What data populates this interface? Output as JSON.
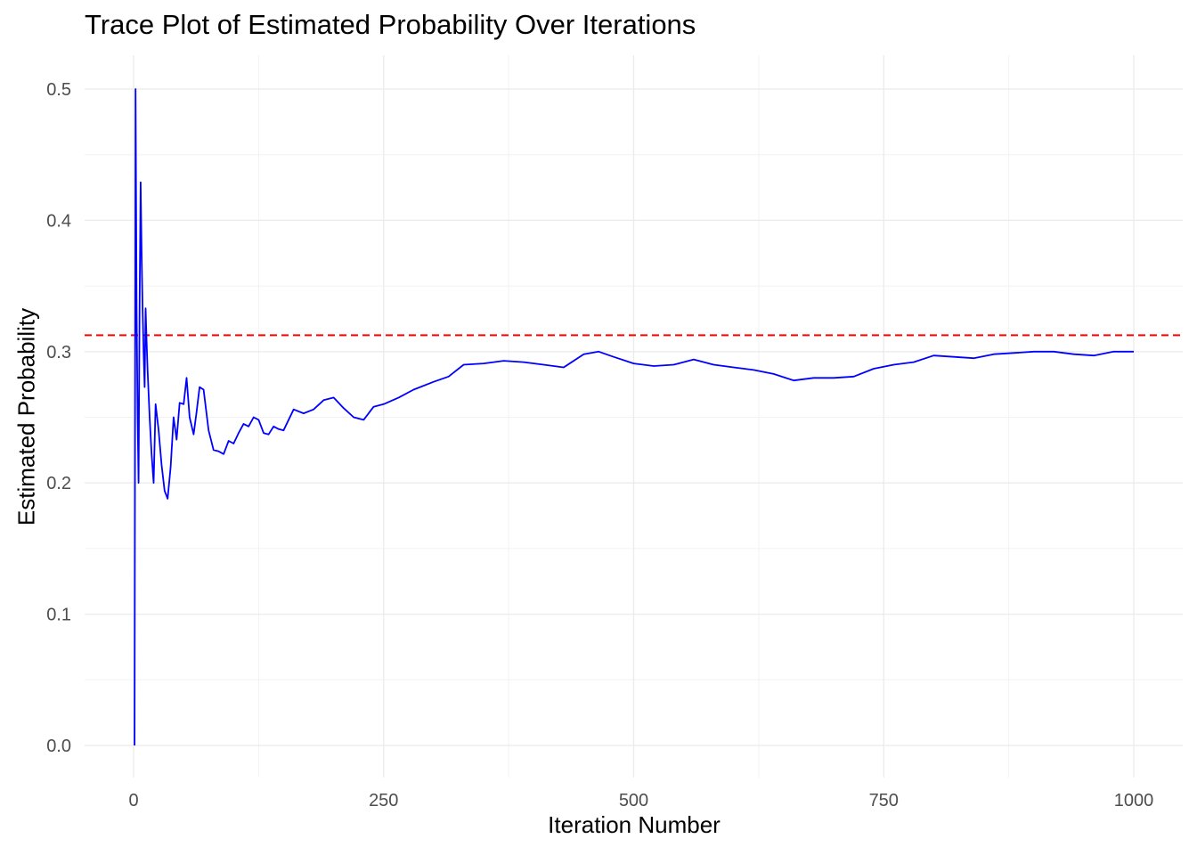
{
  "chart_data": {
    "type": "line",
    "title": "Trace Plot of Estimated Probability Over Iterations",
    "xlabel": "Iteration Number",
    "ylabel": "Estimated Probability",
    "xlim": [
      1,
      1000
    ],
    "ylim": [
      0,
      0.5
    ],
    "x_ticks": [
      0,
      250,
      500,
      750,
      1000
    ],
    "x_tick_labels": [
      "0",
      "250",
      "500",
      "750",
      "1000"
    ],
    "y_ticks": [
      0.0,
      0.1,
      0.2,
      0.3,
      0.4,
      0.5
    ],
    "y_tick_labels": [
      "0.0",
      "0.1",
      "0.2",
      "0.3",
      "0.4",
      "0.5"
    ],
    "grid": true,
    "reference_line": {
      "y": 0.3125,
      "style": "dashed",
      "color": "#ff0000"
    },
    "series": [
      {
        "color": "#0000ff",
        "x": [
          1,
          2,
          3,
          4,
          5,
          6,
          7,
          8,
          9,
          10,
          11,
          12,
          13,
          14,
          16,
          18,
          20,
          22,
          25,
          28,
          31,
          34,
          37,
          40,
          43,
          46,
          50,
          53,
          56,
          60,
          63,
          66,
          70,
          75,
          80,
          85,
          90,
          95,
          100,
          105,
          110,
          115,
          120,
          125,
          130,
          135,
          140,
          145,
          150,
          160,
          170,
          180,
          190,
          200,
          210,
          220,
          230,
          240,
          250,
          265,
          280,
          300,
          315,
          330,
          350,
          370,
          390,
          410,
          430,
          450,
          465,
          480,
          500,
          520,
          540,
          560,
          580,
          600,
          620,
          640,
          660,
          680,
          700,
          720,
          740,
          760,
          780,
          800,
          820,
          840,
          860,
          880,
          900,
          920,
          940,
          960,
          980,
          1000
        ],
        "y": [
          0.0,
          0.5,
          0.333,
          0.25,
          0.2,
          0.333,
          0.429,
          0.375,
          0.333,
          0.3,
          0.273,
          0.333,
          0.308,
          0.286,
          0.25,
          0.222,
          0.2,
          0.26,
          0.24,
          0.214,
          0.194,
          0.188,
          0.212,
          0.25,
          0.233,
          0.261,
          0.26,
          0.28,
          0.25,
          0.237,
          0.254,
          0.273,
          0.271,
          0.24,
          0.225,
          0.224,
          0.222,
          0.232,
          0.23,
          0.238,
          0.245,
          0.243,
          0.25,
          0.248,
          0.238,
          0.237,
          0.243,
          0.241,
          0.24,
          0.256,
          0.253,
          0.256,
          0.263,
          0.265,
          0.257,
          0.25,
          0.248,
          0.258,
          0.26,
          0.265,
          0.271,
          0.277,
          0.281,
          0.29,
          0.291,
          0.293,
          0.292,
          0.29,
          0.288,
          0.298,
          0.3,
          0.296,
          0.291,
          0.289,
          0.29,
          0.294,
          0.29,
          0.288,
          0.286,
          0.283,
          0.278,
          0.28,
          0.28,
          0.281,
          0.287,
          0.29,
          0.292,
          0.297,
          0.296,
          0.295,
          0.298,
          0.299,
          0.3,
          0.3,
          0.298,
          0.297,
          0.3,
          0.3
        ]
      }
    ]
  }
}
